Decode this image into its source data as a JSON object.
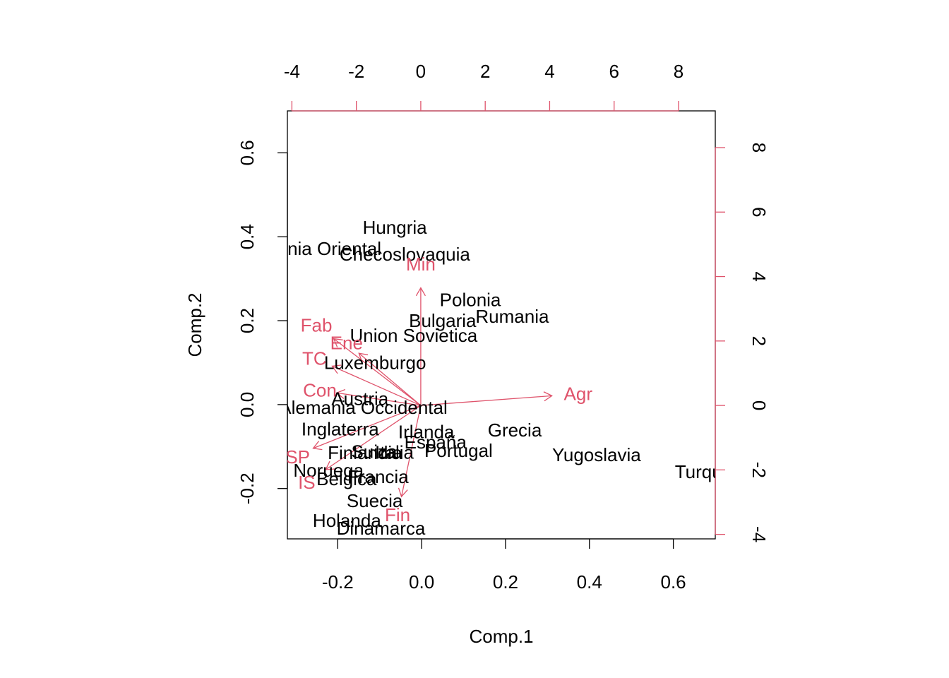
{
  "chart_data": {
    "type": "scatter",
    "subtype": "biplot",
    "title": "",
    "xlabel": "Comp.1",
    "ylabel": "Comp.2",
    "xlim": [
      -0.32,
      0.7
    ],
    "ylim": [
      -0.32,
      0.7
    ],
    "xticks": [
      -0.2,
      0.0,
      0.2,
      0.4,
      0.6
    ],
    "yticks": [
      -0.2,
      0.0,
      0.2,
      0.4,
      0.6
    ],
    "xtick_labels": [
      "-0.2",
      "0.0",
      "0.2",
      "0.4",
      "0.6"
    ],
    "ytick_labels": [
      "-0.2",
      "0.0",
      "0.2",
      "0.4",
      "0.6"
    ],
    "top_axis": {
      "lim": [
        -4.14,
        9.14
      ],
      "ticks": [
        -4,
        -2,
        0,
        2,
        4,
        6,
        8
      ],
      "tick_labels": [
        "-4",
        "-2",
        "0",
        "2",
        "4",
        "6",
        "8"
      ]
    },
    "right_axis": {
      "lim": [
        -4.14,
        9.14
      ],
      "ticks": [
        -4,
        -2,
        0,
        2,
        4,
        6,
        8
      ],
      "tick_labels": [
        "-4",
        "-2",
        "0",
        "2",
        "4",
        "6",
        "8"
      ]
    },
    "colors": {
      "observations": "#000000",
      "variables": "#DF536B",
      "frame": "#000000"
    },
    "observations": [
      {
        "label": "Hungria",
        "x": -0.064,
        "y": 0.422
      },
      {
        "label": "Alemania Oriental",
        "x": -0.27,
        "y": 0.372
      },
      {
        "label": "Checoslovaquia",
        "x": -0.04,
        "y": 0.358
      },
      {
        "label": "Polonia",
        "x": 0.116,
        "y": 0.25
      },
      {
        "label": "Rumania",
        "x": 0.216,
        "y": 0.21
      },
      {
        "label": "Bulgaria",
        "x": 0.05,
        "y": 0.2
      },
      {
        "label": "Union Sovietica",
        "x": -0.019,
        "y": 0.165
      },
      {
        "label": "Luxemburgo",
        "x": -0.111,
        "y": 0.1
      },
      {
        "label": "Austria",
        "x": -0.147,
        "y": 0.014
      },
      {
        "label": "Alemania Occidental",
        "x": -0.139,
        "y": -0.007
      },
      {
        "label": "Inglaterra",
        "x": -0.194,
        "y": -0.058
      },
      {
        "label": "Irlanda",
        "x": 0.011,
        "y": -0.065
      },
      {
        "label": "Grecia",
        "x": 0.222,
        "y": -0.061
      },
      {
        "label": "España",
        "x": 0.033,
        "y": -0.089
      },
      {
        "label": "Portugal",
        "x": 0.088,
        "y": -0.11
      },
      {
        "label": "Yugoslavia",
        "x": 0.417,
        "y": -0.12
      },
      {
        "label": "Turquia",
        "x": 0.677,
        "y": -0.16
      },
      {
        "label": "Finlandia",
        "x": -0.135,
        "y": -0.115
      },
      {
        "label": "Suiza",
        "x": -0.113,
        "y": -0.112
      },
      {
        "label": "Italia",
        "x": -0.065,
        "y": -0.114
      },
      {
        "label": "Noruega",
        "x": -0.222,
        "y": -0.157
      },
      {
        "label": "Francia",
        "x": -0.104,
        "y": -0.172
      },
      {
        "label": "Belgica",
        "x": -0.179,
        "y": -0.177
      },
      {
        "label": "Suecia",
        "x": -0.112,
        "y": -0.229
      },
      {
        "label": "Holanda",
        "x": -0.178,
        "y": -0.276
      },
      {
        "label": "Dinamarca",
        "x": -0.097,
        "y": -0.295
      }
    ],
    "variables": [
      {
        "label": "Agr",
        "x": 4.07,
        "y": 0.3
      },
      {
        "label": "Min",
        "x": 0.0,
        "y": 3.65
      },
      {
        "label": "Fab",
        "x": -2.7,
        "y": 2.07
      },
      {
        "label": "Ene",
        "x": -1.92,
        "y": 1.62
      },
      {
        "label": "TC",
        "x": -2.75,
        "y": 1.22
      },
      {
        "label": "Con",
        "x": -2.61,
        "y": 0.39
      },
      {
        "label": "SSP",
        "x": -3.34,
        "y": -1.33
      },
      {
        "label": "IS",
        "x": -2.95,
        "y": -1.99
      },
      {
        "label": "Fin",
        "x": -0.6,
        "y": -2.83
      }
    ]
  }
}
